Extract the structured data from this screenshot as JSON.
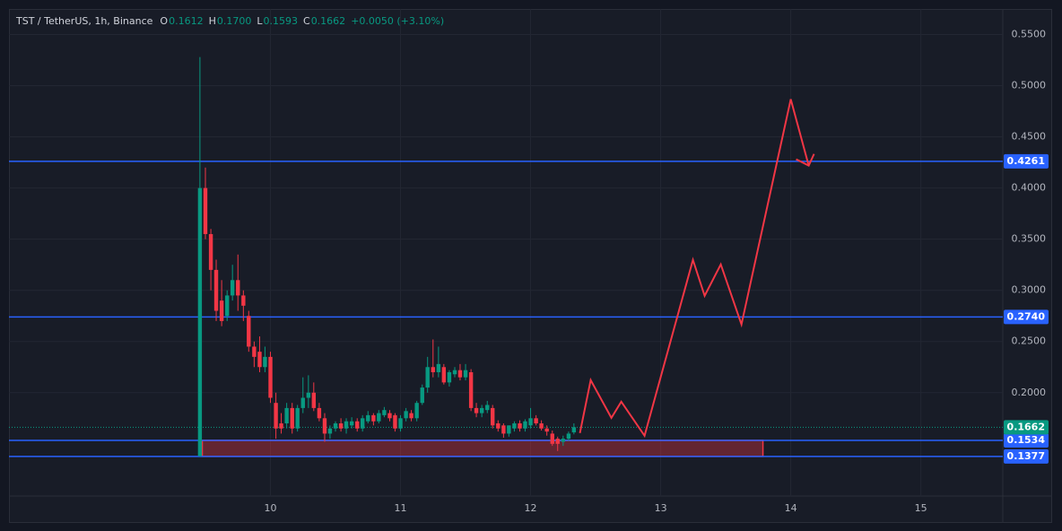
{
  "chart_data": {
    "type": "candlestick",
    "title": "TST / TetherUS, 1h, Binance",
    "ohlc_header": [
      {
        "key": "O",
        "text": "0.1612"
      },
      {
        "key": "H",
        "text": "0.1700"
      },
      {
        "key": "L",
        "text": "0.1593"
      },
      {
        "key": "C",
        "text": "0.1662"
      }
    ],
    "change": "+0.0050 (+3.10%)",
    "up_color": "#089981",
    "down_color": "#f23645",
    "grid": true,
    "xlim": [
      7.99,
      15.63
    ],
    "ylim": [
      0.099,
      0.575
    ],
    "xticks": [
      10,
      11,
      12,
      13,
      14,
      15
    ],
    "yticks": [
      {
        "value": 0.2,
        "label": "0.2000"
      },
      {
        "value": 0.25,
        "label": "0.2500"
      },
      {
        "value": 0.3,
        "label": "0.3000"
      },
      {
        "value": 0.35,
        "label": "0.3500"
      },
      {
        "value": 0.4,
        "label": "0.4000"
      },
      {
        "value": 0.45,
        "label": "0.4500"
      },
      {
        "value": 0.5,
        "label": "0.5000"
      },
      {
        "value": 0.55,
        "label": "0.5500"
      }
    ],
    "x": [
      9.458,
      9.5,
      9.542,
      9.583,
      9.625,
      9.667,
      9.708,
      9.75,
      9.792,
      9.833,
      9.875,
      9.917,
      9.958,
      10,
      10.042,
      10.083,
      10.125,
      10.167,
      10.208,
      10.25,
      10.292,
      10.333,
      10.375,
      10.417,
      10.458,
      10.5,
      10.542,
      10.583,
      10.625,
      10.667,
      10.708,
      10.75,
      10.792,
      10.833,
      10.875,
      10.917,
      10.958,
      11,
      11.042,
      11.083,
      11.125,
      11.167,
      11.208,
      11.25,
      11.292,
      11.333,
      11.375,
      11.417,
      11.458,
      11.5,
      11.542,
      11.583,
      11.625,
      11.667,
      11.708,
      11.75,
      11.792,
      11.833,
      11.875,
      11.917,
      11.958,
      12,
      12.042,
      12.083,
      12.125,
      12.167,
      12.208,
      12.25,
      12.292,
      12.333
    ],
    "open": [
      0.138,
      0.4,
      0.355,
      0.32,
      0.29,
      0.275,
      0.295,
      0.31,
      0.295,
      0.275,
      0.245,
      0.24,
      0.225,
      0.235,
      0.19,
      0.17,
      0.17,
      0.185,
      0.165,
      0.185,
      0.195,
      0.2,
      0.185,
      0.175,
      0.16,
      0.165,
      0.17,
      0.165,
      0.168,
      0.172,
      0.165,
      0.172,
      0.178,
      0.172,
      0.178,
      0.18,
      0.178,
      0.165,
      0.175,
      0.18,
      0.175,
      0.19,
      0.205,
      0.225,
      0.22,
      0.225,
      0.21,
      0.218,
      0.222,
      0.215,
      0.22,
      0.185,
      0.18,
      0.183,
      0.185,
      0.17,
      0.168,
      0.16,
      0.165,
      0.17,
      0.165,
      0.168,
      0.175,
      0.17,
      0.165,
      0.16,
      0.155,
      0.152,
      0.155,
      0.1612
    ],
    "high": [
      0.528,
      0.42,
      0.36,
      0.33,
      0.31,
      0.3,
      0.325,
      0.335,
      0.3,
      0.28,
      0.25,
      0.255,
      0.245,
      0.24,
      0.2,
      0.18,
      0.19,
      0.19,
      0.188,
      0.215,
      0.217,
      0.21,
      0.19,
      0.18,
      0.168,
      0.172,
      0.175,
      0.175,
      0.176,
      0.175,
      0.178,
      0.182,
      0.18,
      0.183,
      0.186,
      0.183,
      0.18,
      0.178,
      0.185,
      0.183,
      0.192,
      0.208,
      0.235,
      0.252,
      0.245,
      0.228,
      0.222,
      0.225,
      0.228,
      0.228,
      0.223,
      0.19,
      0.188,
      0.192,
      0.188,
      0.173,
      0.17,
      0.168,
      0.172,
      0.173,
      0.174,
      0.185,
      0.178,
      0.173,
      0.168,
      0.163,
      0.157,
      0.158,
      0.162,
      0.17
    ],
    "low": [
      0.1377,
      0.35,
      0.3,
      0.27,
      0.265,
      0.27,
      0.29,
      0.28,
      0.27,
      0.24,
      0.225,
      0.22,
      0.22,
      0.19,
      0.155,
      0.16,
      0.165,
      0.16,
      0.162,
      0.18,
      0.185,
      0.182,
      0.172,
      0.152,
      0.155,
      0.162,
      0.162,
      0.16,
      0.165,
      0.162,
      0.162,
      0.17,
      0.168,
      0.17,
      0.176,
      0.172,
      0.162,
      0.162,
      0.172,
      0.172,
      0.172,
      0.188,
      0.2,
      0.215,
      0.215,
      0.208,
      0.206,
      0.215,
      0.212,
      0.212,
      0.182,
      0.176,
      0.176,
      0.18,
      0.165,
      0.162,
      0.156,
      0.157,
      0.162,
      0.162,
      0.162,
      0.165,
      0.168,
      0.163,
      0.158,
      0.148,
      0.143,
      0.148,
      0.153,
      0.1593
    ],
    "close": [
      0.4,
      0.355,
      0.32,
      0.28,
      0.27,
      0.295,
      0.31,
      0.295,
      0.285,
      0.245,
      0.235,
      0.225,
      0.235,
      0.195,
      0.165,
      0.165,
      0.185,
      0.165,
      0.185,
      0.195,
      0.2,
      0.185,
      0.175,
      0.16,
      0.165,
      0.17,
      0.165,
      0.172,
      0.172,
      0.165,
      0.175,
      0.178,
      0.172,
      0.18,
      0.183,
      0.175,
      0.165,
      0.175,
      0.182,
      0.175,
      0.19,
      0.205,
      0.225,
      0.22,
      0.228,
      0.21,
      0.22,
      0.222,
      0.215,
      0.222,
      0.185,
      0.18,
      0.185,
      0.188,
      0.168,
      0.165,
      0.16,
      0.168,
      0.17,
      0.165,
      0.172,
      0.175,
      0.17,
      0.165,
      0.162,
      0.15,
      0.15,
      0.155,
      0.16,
      0.1662
    ],
    "price_lines": [
      {
        "value": 0.4261,
        "color": "#2962ff"
      },
      {
        "value": 0.274,
        "label": "0.2740",
        "color": "#2962ff"
      },
      {
        "value": 0.1534,
        "color": "#2962ff"
      },
      {
        "value": 0.1377,
        "color": "#2962ff"
      }
    ],
    "last_price": {
      "value": 0.1662,
      "color": "#089981"
    },
    "zone": {
      "x": [
        9.476,
        13.786
      ],
      "y": [
        0.1377,
        0.1534
      ],
      "color": "#f23645"
    },
    "projection": {
      "color": "#f23645",
      "x": [
        12.379,
        12.462,
        12.621,
        12.697,
        12.876,
        13.248,
        13.338,
        13.462,
        13.621,
        14.0,
        14.138
      ],
      "y": [
        0.1605,
        0.2123,
        0.1754,
        0.1912,
        0.1579,
        0.3298,
        0.2947,
        0.3254,
        0.2667,
        0.4868,
        0.4219
      ],
      "arrow_x": [
        14.041,
        14.179
      ],
      "arrow_y": [
        0.4281,
        0.4333
      ]
    }
  }
}
